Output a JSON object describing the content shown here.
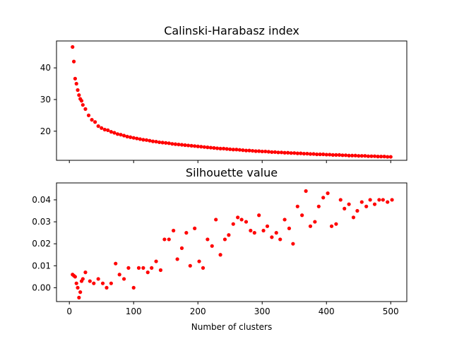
{
  "colors": {
    "marker": "#ff0000",
    "axes": "#000000",
    "background": "#ffffff"
  },
  "chart_data": [
    {
      "type": "scatter",
      "title": "Calinski-Harabasz index",
      "xlabel": "",
      "ylabel": "",
      "xlim": [
        -20,
        525
      ],
      "ylim": [
        10.8,
        48.5
      ],
      "xticks": [
        0,
        100,
        200,
        300,
        400,
        500
      ],
      "xtick_labels_visible": false,
      "yticks": [
        20,
        30,
        40
      ],
      "ytick_labels": [
        "20",
        "30",
        "40"
      ],
      "grid": false,
      "legend": "none",
      "series": [
        {
          "x": [
            5,
            7,
            9,
            11,
            13,
            15,
            17,
            19,
            21,
            25,
            30,
            35,
            40,
            45,
            50,
            55,
            60,
            65,
            70,
            75,
            80,
            85,
            90,
            95,
            100,
            105,
            110,
            115,
            120,
            125,
            130,
            135,
            140,
            145,
            150,
            155,
            160,
            165,
            170,
            175,
            180,
            185,
            190,
            195,
            200,
            205,
            210,
            215,
            220,
            225,
            230,
            235,
            240,
            245,
            250,
            255,
            260,
            265,
            270,
            275,
            280,
            285,
            290,
            295,
            300,
            305,
            310,
            315,
            320,
            325,
            330,
            335,
            340,
            345,
            350,
            355,
            360,
            365,
            370,
            375,
            380,
            385,
            390,
            395,
            400,
            405,
            410,
            415,
            420,
            425,
            430,
            435,
            440,
            445,
            450,
            455,
            460,
            465,
            470,
            475,
            480,
            485,
            490,
            495,
            500
          ],
          "y": [
            46.6,
            42.0,
            36.6,
            35.0,
            33.0,
            31.4,
            30.2,
            29.6,
            28.3,
            27.0,
            25.0,
            23.6,
            22.9,
            21.6,
            21.0,
            20.5,
            20.3,
            19.8,
            19.5,
            19.1,
            18.9,
            18.6,
            18.3,
            18.1,
            17.9,
            17.7,
            17.5,
            17.3,
            17.2,
            17.0,
            16.8,
            16.7,
            16.5,
            16.4,
            16.3,
            16.2,
            16.0,
            15.9,
            15.8,
            15.7,
            15.6,
            15.5,
            15.4,
            15.3,
            15.2,
            15.1,
            15.0,
            14.9,
            14.8,
            14.7,
            14.6,
            14.5,
            14.5,
            14.4,
            14.3,
            14.2,
            14.2,
            14.1,
            14.0,
            13.9,
            13.9,
            13.8,
            13.7,
            13.7,
            13.6,
            13.6,
            13.5,
            13.4,
            13.4,
            13.3,
            13.3,
            13.2,
            13.2,
            13.1,
            13.1,
            13.0,
            13.0,
            12.9,
            12.9,
            12.8,
            12.8,
            12.7,
            12.7,
            12.7,
            12.6,
            12.6,
            12.5,
            12.5,
            12.5,
            12.4,
            12.4,
            12.3,
            12.3,
            12.3,
            12.2,
            12.2,
            12.2,
            12.1,
            12.1,
            12.1,
            12.0,
            12.0,
            12.0,
            11.9,
            11.9
          ]
        }
      ]
    },
    {
      "type": "scatter",
      "title": "Silhouette value",
      "xlabel": "Number of clusters",
      "ylabel": "",
      "xlim": [
        -20,
        525
      ],
      "ylim": [
        -0.0063,
        0.0477
      ],
      "xticks": [
        0,
        100,
        200,
        300,
        400,
        500
      ],
      "xtick_labels": [
        "0",
        "100",
        "200",
        "300",
        "400",
        "500"
      ],
      "yticks": [
        0.0,
        0.01,
        0.02,
        0.03,
        0.04
      ],
      "ytick_labels": [
        "0.00",
        "0.01",
        "0.02",
        "0.03",
        "0.04"
      ],
      "grid": false,
      "legend": "none",
      "series": [
        {
          "x": [
            5,
            7,
            9,
            11,
            13,
            15,
            17,
            19,
            21,
            25,
            32,
            38,
            45,
            52,
            58,
            65,
            72,
            78,
            85,
            92,
            100,
            108,
            115,
            122,
            128,
            135,
            142,
            148,
            155,
            162,
            168,
            175,
            182,
            188,
            195,
            202,
            208,
            215,
            222,
            228,
            235,
            242,
            248,
            255,
            262,
            268,
            275,
            282,
            288,
            295,
            302,
            308,
            315,
            322,
            328,
            335,
            342,
            348,
            355,
            362,
            368,
            375,
            382,
            388,
            395,
            402,
            408,
            415,
            422,
            428,
            435,
            442,
            448,
            455,
            462,
            468,
            475,
            482,
            488,
            495,
            502
          ],
          "y": [
            0.006,
            0.0055,
            0.005,
            0.002,
            0.0,
            -0.0045,
            -0.002,
            0.003,
            0.004,
            0.007,
            0.003,
            0.002,
            0.004,
            0.002,
            0.0,
            0.002,
            0.011,
            0.006,
            0.004,
            0.009,
            0.0,
            0.009,
            0.009,
            0.007,
            0.009,
            0.012,
            0.008,
            0.022,
            0.022,
            0.026,
            0.013,
            0.018,
            0.025,
            0.01,
            0.027,
            0.012,
            0.009,
            0.022,
            0.019,
            0.031,
            0.015,
            0.022,
            0.024,
            0.029,
            0.032,
            0.031,
            0.03,
            0.026,
            0.025,
            0.033,
            0.026,
            0.028,
            0.023,
            0.025,
            0.022,
            0.031,
            0.027,
            0.02,
            0.037,
            0.033,
            0.044,
            0.028,
            0.03,
            0.037,
            0.041,
            0.043,
            0.028,
            0.029,
            0.04,
            0.036,
            0.038,
            0.032,
            0.035,
            0.039,
            0.037,
            0.04,
            0.038,
            0.04,
            0.04,
            0.039,
            0.04
          ]
        }
      ]
    }
  ]
}
